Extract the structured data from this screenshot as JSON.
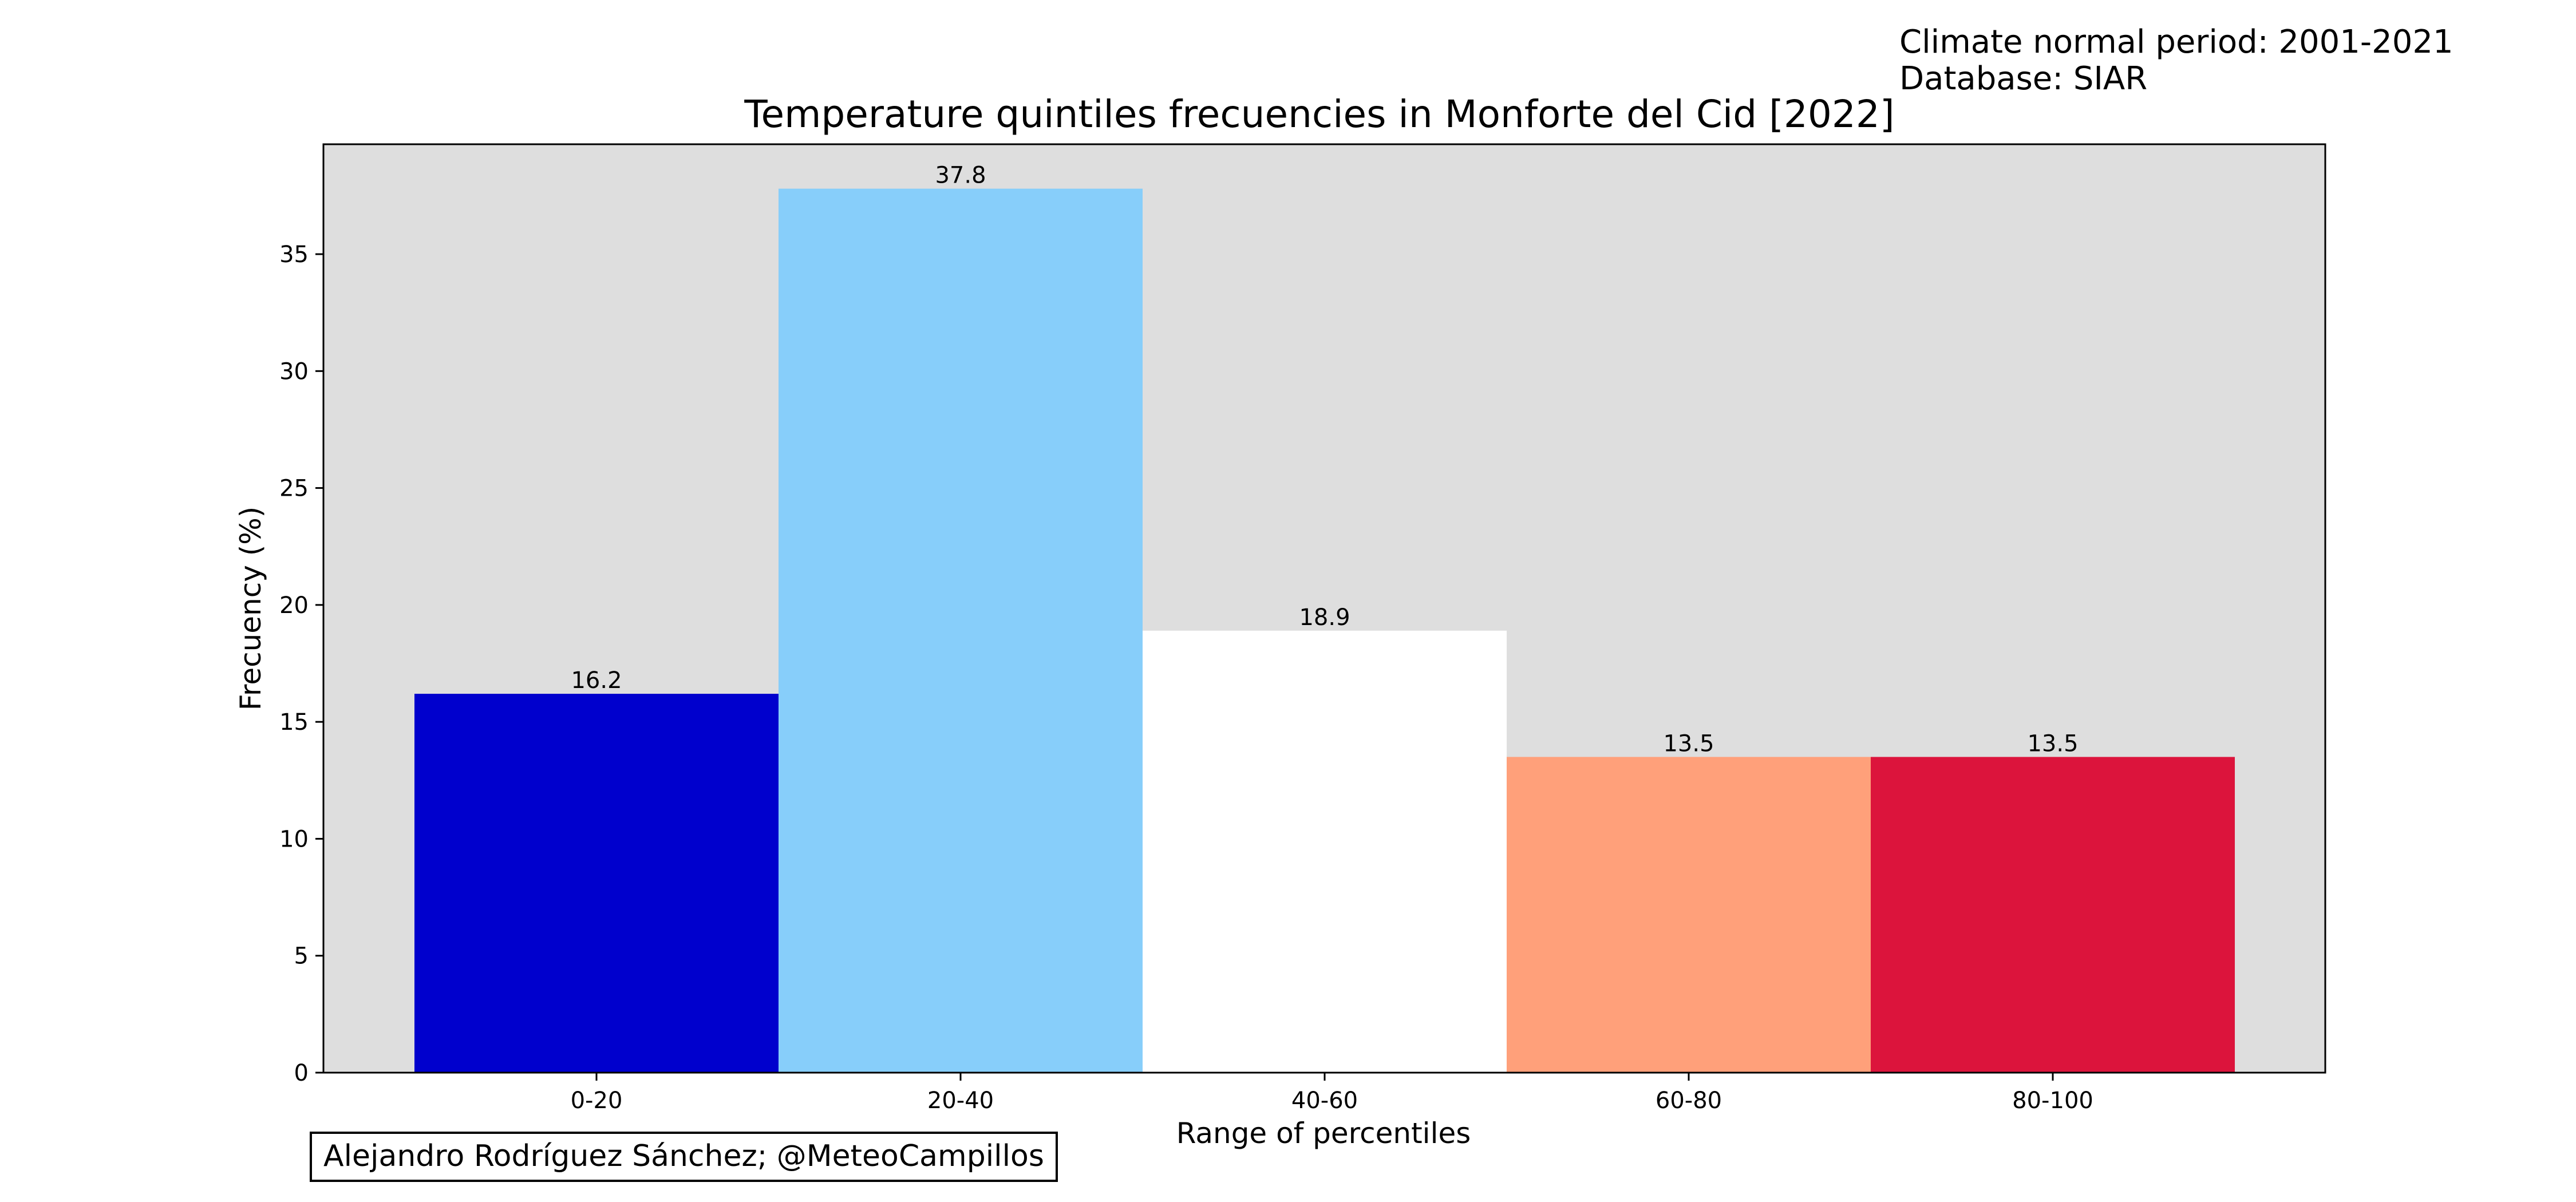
{
  "info": {
    "period": "Climate normal period: 2001-2021",
    "database": "Database: SIAR"
  },
  "credit": "Alejandro Rodríguez Sánchez; @MeteoCampillos",
  "chart_data": {
    "type": "bar",
    "title": "Temperature quintiles frecuencies in Monforte del Cid [2022]",
    "xlabel": "Range of percentiles",
    "ylabel": "Frecuency (%)",
    "categories": [
      "0-20",
      "20-40",
      "40-60",
      "60-80",
      "80-100"
    ],
    "values": [
      16.2,
      37.8,
      18.9,
      13.5,
      13.5
    ],
    "data_labels": [
      "16.2",
      "37.8",
      "18.9",
      "13.5",
      "13.5"
    ],
    "colors": [
      "#0000cd",
      "#87cefa",
      "#ffffff",
      "#ffa07a",
      "#dc143c"
    ],
    "yticks": [
      0,
      5,
      10,
      15,
      20,
      25,
      30,
      35
    ],
    "ylim": [
      0,
      39.7
    ],
    "background": "#dedede",
    "grid": false,
    "legend": "none"
  }
}
